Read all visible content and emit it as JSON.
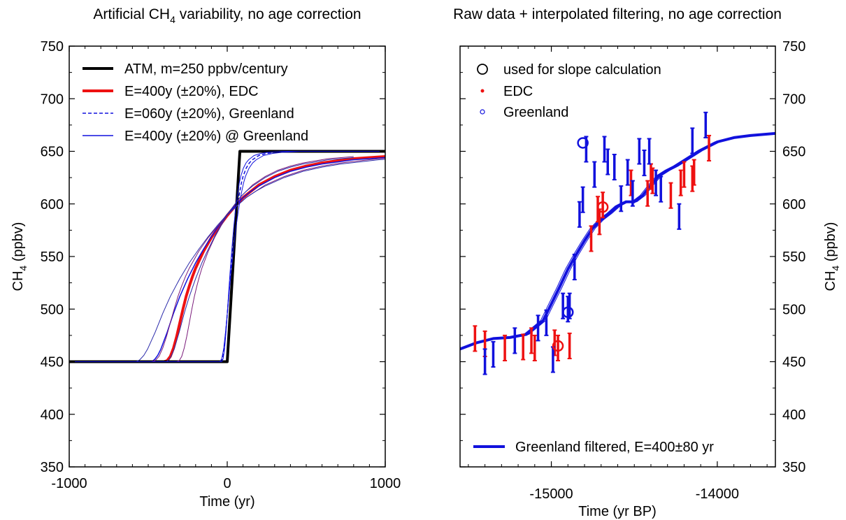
{
  "chart_data": [
    {
      "type": "line",
      "title": "Artificial CH4 variability, no age correction",
      "title_main": "Artificial CH",
      "title_sub": "4",
      "title_rest": " variability, no age correction",
      "xlabel": "Time (yr)",
      "ylabel": "CH4 (ppbv)",
      "ylabel_main": "CH",
      "ylabel_sub": "4",
      "ylabel_rest": " (ppbv)",
      "xlim": [
        -1000,
        1000
      ],
      "ylim": [
        350,
        750
      ],
      "x_ticks": [
        -1000,
        0,
        1000
      ],
      "y_ticks": [
        350,
        400,
        450,
        500,
        550,
        600,
        650,
        700,
        750
      ],
      "grid": false,
      "legend_position": "top-left",
      "series": [
        {
          "name": "ATM, m=250 ppbv/century",
          "color": "#000000",
          "style": "solid",
          "width": 4,
          "x": [
            -1000,
            0,
            80,
            1000
          ],
          "y": [
            450,
            450,
            650,
            650
          ]
        },
        {
          "name": "E=400y (±20%), EDC",
          "color": "#ee1111",
          "style": "solid",
          "width": 4,
          "x": [
            -1000,
            -400,
            -380,
            -360,
            -340,
            -320,
            -300,
            -280,
            -260,
            -240,
            -220,
            -200,
            -150,
            -100,
            -50,
            0,
            50,
            100,
            150,
            200,
            300,
            400,
            500,
            600,
            700,
            800,
            900,
            1000
          ],
          "y": [
            450,
            450,
            451,
            455,
            463,
            474,
            487,
            500,
            512,
            522,
            531,
            539,
            555,
            568,
            579,
            589,
            598,
            606,
            612,
            618,
            626,
            632,
            636,
            639,
            641,
            643,
            644,
            645
          ]
        },
        {
          "name": "E=060y (±20%), Greenland",
          "color": "#1111dd",
          "style": "dashed",
          "width": 1.5,
          "x": [
            -1000,
            -40,
            -30,
            -20,
            -10,
            0,
            10,
            20,
            30,
            40,
            50,
            60,
            70,
            80,
            90,
            100,
            120,
            140,
            160,
            180,
            200,
            250,
            300,
            400,
            500,
            700,
            1000
          ],
          "y": [
            450,
            450,
            453,
            462,
            477,
            495,
            514,
            533,
            550,
            566,
            580,
            592,
            603,
            612,
            620,
            626,
            634,
            639,
            642,
            644,
            646,
            648,
            649,
            650,
            650,
            650,
            650
          ]
        },
        {
          "name": "E=400y (±20%) @ Greenland",
          "color": "#1111dd",
          "style": "solid",
          "width": 1.5,
          "x": [
            -1000,
            -480,
            -460,
            -440,
            -420,
            -400,
            -380,
            -360,
            -340,
            -320,
            -300,
            -250,
            -200,
            -150,
            -100,
            -50,
            0,
            50,
            100,
            150,
            200,
            300,
            400,
            500,
            600,
            700,
            800,
            900,
            1000
          ],
          "y": [
            450,
            450,
            452,
            456,
            462,
            470,
            478,
            487,
            496,
            504,
            512,
            529,
            544,
            557,
            569,
            580,
            590,
            598,
            606,
            612,
            617,
            625,
            631,
            635,
            638,
            640,
            642,
            643,
            644
          ]
        }
      ]
    },
    {
      "type": "scatter",
      "title": "Raw data + interpolated filtering, no age correction",
      "xlabel": "Time (yr BP)",
      "ylabel": "CH4 (ppbv)",
      "ylabel_main": "CH",
      "ylabel_sub": "4",
      "ylabel_rest": " (ppbv)",
      "xlim": [
        -15550,
        -13650
      ],
      "ylim": [
        350,
        750
      ],
      "x_ticks": [
        -15000,
        -14000
      ],
      "y_ticks": [
        350,
        400,
        450,
        500,
        550,
        600,
        650,
        700,
        750
      ],
      "grid": false,
      "legend_position": "top-left",
      "legend_bottom_position": "bottom-right",
      "legend": [
        {
          "label": "used for slope calculation",
          "marker": "open-circle",
          "color": "#000000"
        },
        {
          "label": "EDC",
          "marker": "dot",
          "color": "#ee1111"
        },
        {
          "label": "Greenland",
          "marker": "small-circle",
          "color": "#1111dd"
        }
      ],
      "filtered_legend": "Greenland filtered, E=400±80 yr",
      "series": [
        {
          "name": "EDC",
          "color": "#ee1111",
          "error": 12,
          "x": [
            -15460,
            -15400,
            -15280,
            -15170,
            -15120,
            -15100,
            -14980,
            -14960,
            -14890,
            -14760,
            -14720,
            -14710,
            -14690,
            -14520,
            -14420,
            -14400,
            -14390,
            -14280,
            -14220,
            -14200,
            -14150,
            -14140,
            -14050
          ],
          "y": [
            472,
            467,
            463,
            464,
            470,
            463,
            468,
            463,
            465,
            567,
            595,
            583,
            599,
            620,
            610,
            626,
            622,
            608,
            620,
            628,
            624,
            630,
            653
          ]
        },
        {
          "name": "Greenland",
          "color": "#1111dd",
          "error": 12,
          "x": [
            -15400,
            -15350,
            -15220,
            -15080,
            -15030,
            -14990,
            -14930,
            -14900,
            -14890,
            -14860,
            -14830,
            -14810,
            -14790,
            -14740,
            -14680,
            -14660,
            -14620,
            -14580,
            -14540,
            -14510,
            -14470,
            -14440,
            -14410,
            -14370,
            -14340,
            -14230,
            -14150,
            -14070
          ],
          "y": [
            450,
            457,
            470,
            482,
            487,
            452,
            503,
            500,
            503,
            540,
            590,
            604,
            652,
            628,
            652,
            640,
            635,
            605,
            630,
            610,
            650,
            639,
            650,
            620,
            614,
            588,
            660,
            675
          ]
        },
        {
          "name": "used for slope calculation",
          "color": "#ee1111",
          "x": [
            -14960
          ],
          "y": [
            465
          ]
        },
        {
          "name": "used for slope calculation Greenland",
          "color": "#1111dd",
          "x": [
            -14900,
            -14810
          ],
          "y": [
            497,
            658
          ]
        },
        {
          "name": "used for slope calculation EDC",
          "color": "#ee1111",
          "x": [
            -14690
          ],
          "y": [
            597
          ]
        },
        {
          "name": "Greenland filtered, E=400±80 yr",
          "color": "#1111dd",
          "width": 4,
          "x": [
            -15550,
            -15450,
            -15350,
            -15250,
            -15150,
            -15050,
            -15000,
            -14950,
            -14900,
            -14850,
            -14800,
            -14750,
            -14700,
            -14650,
            -14600,
            -14550,
            -14500,
            -14450,
            -14400,
            -14350,
            -14300,
            -14250,
            -14200,
            -14150,
            -14100,
            -14050,
            -14000,
            -13900,
            -13800,
            -13650
          ],
          "y": [
            462,
            468,
            472,
            473,
            476,
            489,
            505,
            521,
            538,
            552,
            565,
            577,
            585,
            591,
            598,
            602,
            602,
            608,
            618,
            627,
            632,
            636,
            641,
            646,
            651,
            655,
            659,
            663,
            665,
            667
          ]
        }
      ]
    }
  ]
}
